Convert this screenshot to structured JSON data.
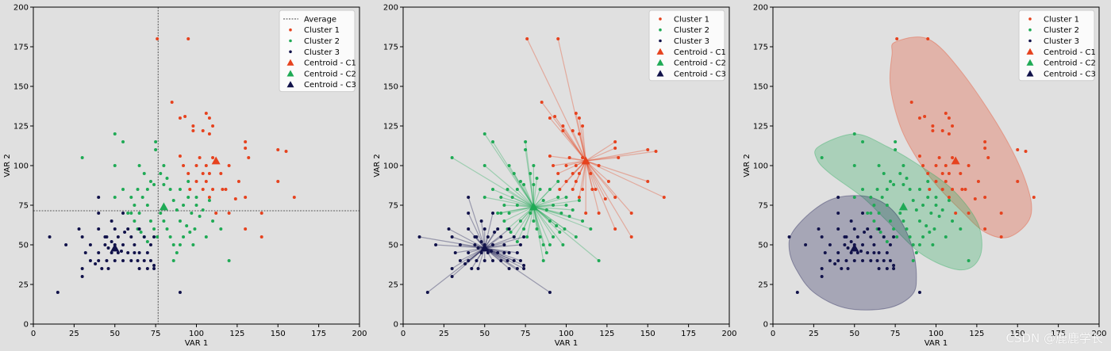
{
  "watermark": "CSDN @鹿鹿学长",
  "colors": {
    "background": "#e0e0e0",
    "c1": "#e6421e",
    "c2": "#1faa55",
    "c3": "#11124a",
    "average_line": "#333333"
  },
  "chart_data": [
    {
      "type": "scatter",
      "variant": "points_with_average_lines",
      "xlabel": "VAR 1",
      "ylabel": "VAR 2",
      "xlim": [
        0,
        200
      ],
      "ylim": [
        0,
        200
      ],
      "xticks": [
        0,
        25,
        50,
        75,
        100,
        125,
        150,
        175,
        200
      ],
      "yticks": [
        0,
        25,
        50,
        75,
        100,
        125,
        150,
        175,
        200
      ],
      "average": {
        "x": 76.5,
        "y": 71.5
      },
      "legend": {
        "position": "top-right",
        "entries": [
          "Average",
          "Cluster 1",
          "Cluster 2",
          "Cluster 3",
          "Centroid - C1",
          "Centroid - C2",
          "Centroid - C3"
        ]
      }
    },
    {
      "type": "scatter",
      "variant": "points_with_centroid_links",
      "xlabel": "VAR 1",
      "ylabel": "VAR 2",
      "xlim": [
        0,
        200
      ],
      "ylim": [
        0,
        200
      ],
      "xticks": [
        0,
        25,
        50,
        75,
        100,
        125,
        150,
        175,
        200
      ],
      "yticks": [
        0,
        25,
        50,
        75,
        100,
        125,
        150,
        175,
        200
      ],
      "legend": {
        "position": "top-right",
        "entries": [
          "Cluster 1",
          "Cluster 2",
          "Cluster 3",
          "Centroid - C1",
          "Centroid - C2",
          "Centroid - C3"
        ]
      }
    },
    {
      "type": "scatter",
      "variant": "points_with_hulls",
      "xlabel": "VAR 1",
      "ylabel": "VAR 2",
      "xlim": [
        0,
        200
      ],
      "ylim": [
        0,
        200
      ],
      "xticks": [
        0,
        25,
        50,
        75,
        100,
        125,
        150,
        175,
        200
      ],
      "yticks": [
        0,
        25,
        50,
        75,
        100,
        125,
        150,
        175,
        200
      ],
      "legend": {
        "position": "top-right",
        "entries": [
          "Cluster 1",
          "Cluster 2",
          "Cluster 3",
          "Centroid - C1",
          "Centroid - C2",
          "Centroid - C3"
        ]
      },
      "hulls": [
        {
          "cluster": "Cluster 1",
          "points": [
            [
              75,
              178
            ],
            [
              95,
              180
            ],
            [
              115,
              160
            ],
            [
              140,
              122
            ],
            [
              155,
              90
            ],
            [
              158,
              68
            ],
            [
              145,
              55
            ],
            [
              130,
              58
            ],
            [
              115,
              72
            ],
            [
              100,
              88
            ],
            [
              88,
              105
            ],
            [
              78,
              125
            ],
            [
              72,
              150
            ],
            [
              73,
              170
            ]
          ]
        },
        {
          "cluster": "Cluster 2",
          "points": [
            [
              28,
              112
            ],
            [
              50,
              120
            ],
            [
              70,
              112
            ],
            [
              90,
              100
            ],
            [
              110,
              85
            ],
            [
              125,
              65
            ],
            [
              128,
              47
            ],
            [
              122,
              36
            ],
            [
              110,
              35
            ],
            [
              90,
              45
            ],
            [
              70,
              65
            ],
            [
              55,
              80
            ],
            [
              35,
              95
            ],
            [
              27,
              104
            ]
          ]
        },
        {
          "cluster": "Cluster 3",
          "points": [
            [
              12,
              58
            ],
            [
              25,
              72
            ],
            [
              40,
              80
            ],
            [
              60,
              80
            ],
            [
              75,
              70
            ],
            [
              85,
              50
            ],
            [
              88,
              30
            ],
            [
              85,
              18
            ],
            [
              70,
              10
            ],
            [
              45,
              10
            ],
            [
              25,
              20
            ],
            [
              14,
              35
            ],
            [
              10,
              47
            ]
          ]
        }
      ]
    }
  ],
  "clusters": [
    {
      "name": "Cluster 1",
      "centroid_name": "Centroid - C1",
      "centroid": [
        112,
        103
      ],
      "points": [
        [
          76,
          180
        ],
        [
          95,
          180
        ],
        [
          85,
          140
        ],
        [
          90,
          130
        ],
        [
          93,
          131
        ],
        [
          98,
          122
        ],
        [
          98,
          125
        ],
        [
          104,
          122
        ],
        [
          106,
          133
        ],
        [
          108,
          130
        ],
        [
          110,
          125
        ],
        [
          108,
          120
        ],
        [
          90,
          106
        ],
        [
          92,
          100
        ],
        [
          95,
          95
        ],
        [
          100,
          100
        ],
        [
          102,
          105
        ],
        [
          106,
          100
        ],
        [
          110,
          105
        ],
        [
          108,
          95
        ],
        [
          104,
          95
        ],
        [
          106,
          90
        ],
        [
          110,
          85
        ],
        [
          115,
          95
        ],
        [
          120,
          100
        ],
        [
          96,
          85
        ],
        [
          100,
          90
        ],
        [
          104,
          85
        ],
        [
          108,
          80
        ],
        [
          112,
          70
        ],
        [
          118,
          85
        ],
        [
          120,
          70
        ],
        [
          124,
          79
        ],
        [
          130,
          60
        ],
        [
          130,
          80
        ],
        [
          130,
          111
        ],
        [
          130,
          115
        ],
        [
          132,
          105
        ],
        [
          140,
          70
        ],
        [
          140,
          55
        ],
        [
          150,
          110
        ],
        [
          150,
          90
        ],
        [
          155,
          109
        ],
        [
          160,
          80
        ],
        [
          126,
          90
        ],
        [
          116,
          85
        ]
      ]
    },
    {
      "name": "Cluster 2",
      "centroid_name": "Centroid - C2",
      "centroid": [
        80,
        74
      ],
      "points": [
        [
          30,
          105
        ],
        [
          50,
          120
        ],
        [
          55,
          115
        ],
        [
          50,
          100
        ],
        [
          55,
          85
        ],
        [
          60,
          80
        ],
        [
          62,
          75
        ],
        [
          65,
          70
        ],
        [
          67,
          80
        ],
        [
          70,
          85
        ],
        [
          72,
          90
        ],
        [
          74,
          88
        ],
        [
          75,
          110
        ],
        [
          75,
          115
        ],
        [
          78,
          95
        ],
        [
          80,
          100
        ],
        [
          82,
          92
        ],
        [
          84,
          85
        ],
        [
          86,
          78
        ],
        [
          88,
          72
        ],
        [
          90,
          65
        ],
        [
          92,
          75
        ],
        [
          95,
          80
        ],
        [
          97,
          70
        ],
        [
          99,
          60
        ],
        [
          100,
          75
        ],
        [
          102,
          68
        ],
        [
          104,
          72
        ],
        [
          106,
          55
        ],
        [
          108,
          78
        ],
        [
          110,
          65
        ],
        [
          115,
          60
        ],
        [
          120,
          40
        ],
        [
          65,
          100
        ],
        [
          68,
          95
        ],
        [
          70,
          75
        ],
        [
          72,
          65
        ],
        [
          74,
          60
        ],
        [
          76,
          55
        ],
        [
          78,
          70
        ],
        [
          80,
          65
        ],
        [
          82,
          60
        ],
        [
          84,
          55
        ],
        [
          86,
          50
        ],
        [
          88,
          45
        ],
        [
          90,
          50
        ],
        [
          92,
          55
        ],
        [
          94,
          62
        ],
        [
          96,
          58
        ],
        [
          98,
          50
        ],
        [
          60,
          70
        ],
        [
          62,
          65
        ],
        [
          64,
          60
        ],
        [
          66,
          58
        ],
        [
          68,
          55
        ],
        [
          70,
          52
        ],
        [
          86,
          40
        ],
        [
          90,
          85
        ],
        [
          80,
          88
        ],
        [
          50,
          80
        ],
        [
          58,
          70
        ],
        [
          64,
          85
        ],
        [
          95,
          90
        ],
        [
          100,
          80
        ]
      ]
    },
    {
      "name": "Cluster 3",
      "centroid_name": "Centroid - C3",
      "centroid": [
        50,
        48
      ],
      "points": [
        [
          10,
          55
        ],
        [
          15,
          20
        ],
        [
          20,
          50
        ],
        [
          28,
          60
        ],
        [
          30,
          55
        ],
        [
          30,
          35
        ],
        [
          30,
          30
        ],
        [
          32,
          45
        ],
        [
          35,
          50
        ],
        [
          35,
          40
        ],
        [
          38,
          38
        ],
        [
          40,
          80
        ],
        [
          40,
          70
        ],
        [
          40,
          60
        ],
        [
          40,
          45
        ],
        [
          40,
          40
        ],
        [
          42,
          35
        ],
        [
          44,
          50
        ],
        [
          45,
          55
        ],
        [
          45,
          40
        ],
        [
          46,
          35
        ],
        [
          48,
          65
        ],
        [
          48,
          45
        ],
        [
          50,
          60
        ],
        [
          50,
          50
        ],
        [
          50,
          40
        ],
        [
          52,
          55
        ],
        [
          52,
          45
        ],
        [
          55,
          70
        ],
        [
          55,
          50
        ],
        [
          55,
          40
        ],
        [
          58,
          60
        ],
        [
          58,
          45
        ],
        [
          60,
          55
        ],
        [
          60,
          40
        ],
        [
          62,
          50
        ],
        [
          62,
          45
        ],
        [
          65,
          60
        ],
        [
          65,
          45
        ],
        [
          65,
          35
        ],
        [
          68,
          55
        ],
        [
          68,
          40
        ],
        [
          70,
          45
        ],
        [
          70,
          35
        ],
        [
          72,
          50
        ],
        [
          72,
          40
        ],
        [
          74,
          55
        ],
        [
          74,
          37
        ],
        [
          74,
          35
        ],
        [
          90,
          20
        ],
        [
          44,
          55
        ],
        [
          46,
          48
        ],
        [
          48,
          52
        ],
        [
          54,
          46
        ],
        [
          56,
          58
        ],
        [
          64,
          40
        ]
      ]
    }
  ]
}
